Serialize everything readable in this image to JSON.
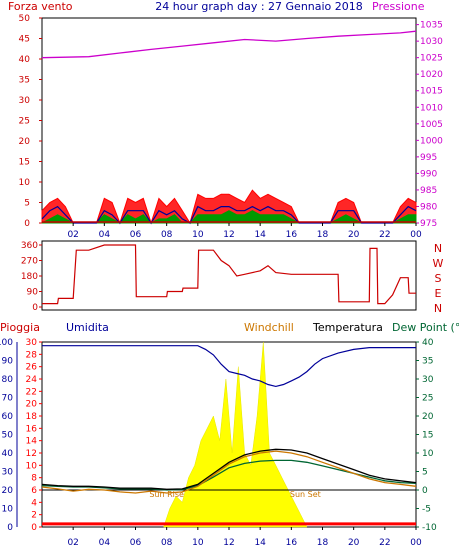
{
  "title": "24 hour graph day : 27 Gennaio 2018",
  "x_tick_labels": [
    "02",
    "04",
    "06",
    "08",
    "10",
    "12",
    "14",
    "16",
    "18",
    "20",
    "22",
    "00"
  ],
  "colors": {
    "wind": "#cc0000",
    "gust": "#ff0000",
    "pressure": "#cc00cc",
    "humidity": "#000099",
    "temperature": "#000000",
    "windchill": "#cc7700",
    "dewpoint": "#006633",
    "rain": "#ff0000",
    "solar": "#ffff00",
    "direction": "#cc0000",
    "avg_wind": "#000099",
    "avg_green": "#009900"
  },
  "chart_data": [
    {
      "type": "line",
      "panel": "wind-pressure",
      "left_label": "Forza vento",
      "right_label": "Pressione",
      "left_ticks": [
        "50",
        "45",
        "40",
        "35",
        "30",
        "25",
        "20",
        "15",
        "10",
        "5",
        "0"
      ],
      "right_ticks": [
        "1035",
        "1030",
        "1025",
        "1020",
        "1015",
        "1010",
        "1005",
        "1000",
        "995",
        "990",
        "985",
        "980",
        "975"
      ],
      "ylim_left": [
        0,
        50
      ],
      "ylim_right": [
        975,
        1037
      ],
      "x_range_hours": [
        0,
        24
      ],
      "pressure_series": {
        "x": [
          0,
          3,
          5,
          7,
          9,
          11,
          13,
          15,
          17,
          19,
          21,
          23,
          24
        ],
        "y": [
          1025.0,
          1025.3,
          1026.4,
          1027.5,
          1028.5,
          1029.5,
          1030.5,
          1030.0,
          1030.8,
          1031.5,
          1032.0,
          1032.5,
          1033.0
        ]
      },
      "wind_series": {
        "x": [
          0,
          0.5,
          1,
          1.5,
          2,
          2.5,
          3,
          3.5,
          4,
          4.5,
          5,
          5.5,
          6,
          6.5,
          7,
          7.5,
          8,
          8.5,
          9,
          9.5,
          10,
          10.5,
          11,
          11.5,
          12,
          12.5,
          13,
          13.5,
          14,
          14.5,
          15,
          15.5,
          16,
          16.5,
          17,
          17.5,
          18,
          18.5,
          19,
          19.5,
          20,
          20.5,
          21,
          21.5,
          22,
          22.5,
          23,
          23.5,
          24
        ],
        "gust": [
          3,
          5,
          6,
          4,
          0,
          0,
          0,
          0,
          6,
          5,
          0,
          6,
          5,
          6,
          0,
          6,
          4,
          6,
          3,
          0,
          7,
          6,
          6,
          7,
          7,
          6,
          5,
          8,
          6,
          7,
          6,
          5,
          4,
          0,
          0,
          0,
          0,
          0,
          5,
          6,
          5,
          0,
          0,
          0,
          0,
          0,
          4,
          6,
          5
        ],
        "avg": [
          1,
          3,
          4,
          2,
          0,
          0,
          0,
          0,
          3,
          2,
          0,
          3,
          3,
          3,
          0,
          3,
          2,
          3,
          1,
          0,
          4,
          3,
          3,
          4,
          4,
          3,
          3,
          4,
          3,
          4,
          3,
          3,
          2,
          0,
          0,
          0,
          0,
          0,
          3,
          3,
          3,
          0,
          0,
          0,
          0,
          0,
          2,
          4,
          3
        ],
        "low": [
          0,
          1,
          2,
          1,
          0,
          0,
          0,
          0,
          2,
          1,
          0,
          2,
          1,
          2,
          0,
          1,
          1,
          2,
          0,
          0,
          2,
          2,
          2,
          2,
          3,
          2,
          2,
          3,
          2,
          2,
          2,
          2,
          1,
          0,
          0,
          0,
          0,
          0,
          1,
          2,
          1,
          0,
          0,
          0,
          0,
          0,
          1,
          2,
          2
        ]
      }
    },
    {
      "type": "line",
      "panel": "wind-direction",
      "left_ticks": [
        "360",
        "270",
        "180",
        "90",
        "0"
      ],
      "right_letters": [
        "N",
        "W",
        "S",
        "E",
        "N"
      ],
      "ylim": [
        0,
        360
      ],
      "x_range_hours": [
        0,
        24
      ],
      "direction_series": {
        "x": [
          0,
          1.0,
          1.05,
          2.0,
          2.2,
          3.0,
          4.0,
          6.0,
          6.05,
          8.0,
          8.05,
          9.0,
          9.05,
          10.0,
          10.05,
          11.0,
          11.5,
          12.0,
          12.5,
          13.0,
          14.0,
          14.5,
          15.0,
          16.0,
          18.0,
          19.0,
          19.05,
          21.0,
          21.05,
          21.5,
          21.55,
          22.0,
          22.5,
          23.0,
          23.5,
          23.55,
          24.0
        ],
        "y": [
          20,
          20,
          50,
          50,
          330,
          330,
          360,
          360,
          60,
          60,
          90,
          90,
          110,
          110,
          330,
          330,
          270,
          240,
          180,
          190,
          210,
          240,
          200,
          190,
          190,
          190,
          30,
          30,
          340,
          340,
          20,
          20,
          70,
          170,
          170,
          80,
          80
        ]
      }
    },
    {
      "type": "line",
      "panel": "rain-humidity-temperature",
      "legend": [
        "Pioggia",
        "Umidita",
        "Windchill",
        "Temperatura",
        "Dew Point (°C"
      ],
      "left_outer_ticks": [
        "100",
        "90",
        "80",
        "70",
        "60",
        "50",
        "40",
        "30",
        "20",
        "10",
        "0"
      ],
      "left_inner_ticks": [
        "30",
        "28",
        "26",
        "24",
        "22",
        "20",
        "18",
        "16",
        "14",
        "12",
        "10",
        "8",
        "6",
        "4",
        "2",
        "0"
      ],
      "right_ticks": [
        "40",
        "35",
        "30",
        "25",
        "20",
        "15",
        "10",
        "5",
        "0",
        "-5",
        "-10"
      ],
      "ylim_humidity": [
        0,
        100
      ],
      "ylim_rain": [
        0,
        30
      ],
      "ylim_temperature": [
        -10,
        40
      ],
      "x_range_hours": [
        0,
        24
      ],
      "annotations": [
        "Sun Rise",
        "Sun Set"
      ],
      "humidity_series": {
        "x": [
          0,
          1,
          2,
          3,
          4,
          5,
          6,
          7,
          8,
          9,
          10,
          10.5,
          11,
          11.5,
          12,
          12.5,
          13,
          13.5,
          14,
          14.5,
          15,
          15.5,
          16,
          16.5,
          17,
          17.5,
          18,
          19,
          20,
          21,
          22,
          23,
          24
        ],
        "y": [
          98,
          98,
          98,
          98,
          98,
          98,
          98,
          98,
          98,
          98,
          98,
          96,
          93,
          88,
          84,
          83,
          82,
          80,
          79,
          77,
          76,
          77,
          79,
          81,
          84,
          88,
          91,
          94,
          96,
          97,
          97,
          97,
          97
        ]
      },
      "temperature_series": {
        "x": [
          0,
          1,
          2,
          3,
          4,
          5,
          6,
          7,
          8,
          9,
          10,
          11,
          12,
          13,
          14,
          15,
          16,
          17,
          18,
          19,
          20,
          21,
          22,
          23,
          24
        ],
        "y": [
          1.5,
          1.2,
          1.0,
          1.0,
          0.8,
          0.5,
          0.5,
          0.5,
          0.2,
          0.3,
          1.5,
          4.5,
          7.5,
          9.5,
          10.5,
          11.0,
          10.8,
          10.0,
          8.5,
          7.0,
          5.5,
          4.0,
          3.0,
          2.5,
          2.0
        ]
      },
      "windchill_series": {
        "x": [
          0,
          1,
          2,
          3,
          4,
          5,
          6,
          7,
          8,
          9,
          10,
          11,
          12,
          13,
          14,
          15,
          16,
          17,
          18,
          19,
          20,
          21,
          22,
          23,
          24
        ],
        "y": [
          0.8,
          0.3,
          -0.3,
          0.2,
          0.0,
          -0.5,
          -0.8,
          -0.3,
          -0.8,
          -0.5,
          1.0,
          4.0,
          7.0,
          9.0,
          10.0,
          10.5,
          10.0,
          9.0,
          7.5,
          6.0,
          4.5,
          3.0,
          2.0,
          1.5,
          1.0
        ]
      },
      "dewpoint_series": {
        "x": [
          0,
          1,
          2,
          3,
          4,
          5,
          6,
          7,
          8,
          9,
          10,
          11,
          12,
          13,
          14,
          15,
          16,
          17,
          18,
          19,
          20,
          21,
          22,
          23,
          24
        ],
        "y": [
          1.2,
          1.0,
          0.8,
          0.8,
          0.6,
          0.3,
          0.3,
          0.3,
          0.0,
          0.1,
          1.2,
          3.5,
          6.0,
          7.2,
          7.8,
          8.0,
          8.0,
          7.5,
          6.5,
          5.5,
          4.5,
          3.5,
          2.5,
          2.0,
          1.8
        ]
      },
      "rain_cumulative_mm": {
        "x": [
          0,
          24
        ],
        "y": [
          0.5,
          0.5
        ]
      },
      "solar_series": {
        "x": [
          7.8,
          8.2,
          8.6,
          9.0,
          9.4,
          9.8,
          10.2,
          10.6,
          11.0,
          11.4,
          11.8,
          12.2,
          12.6,
          13.0,
          13.4,
          13.8,
          14.2,
          14.6,
          15.0,
          15.4,
          15.8,
          16.2,
          16.6,
          17.0
        ],
        "y": [
          0,
          3,
          5,
          4,
          8,
          10,
          14,
          16,
          18,
          14,
          24,
          12,
          26,
          12,
          10,
          18,
          30,
          12,
          10,
          8,
          6,
          4,
          2,
          0
        ]
      }
    }
  ]
}
